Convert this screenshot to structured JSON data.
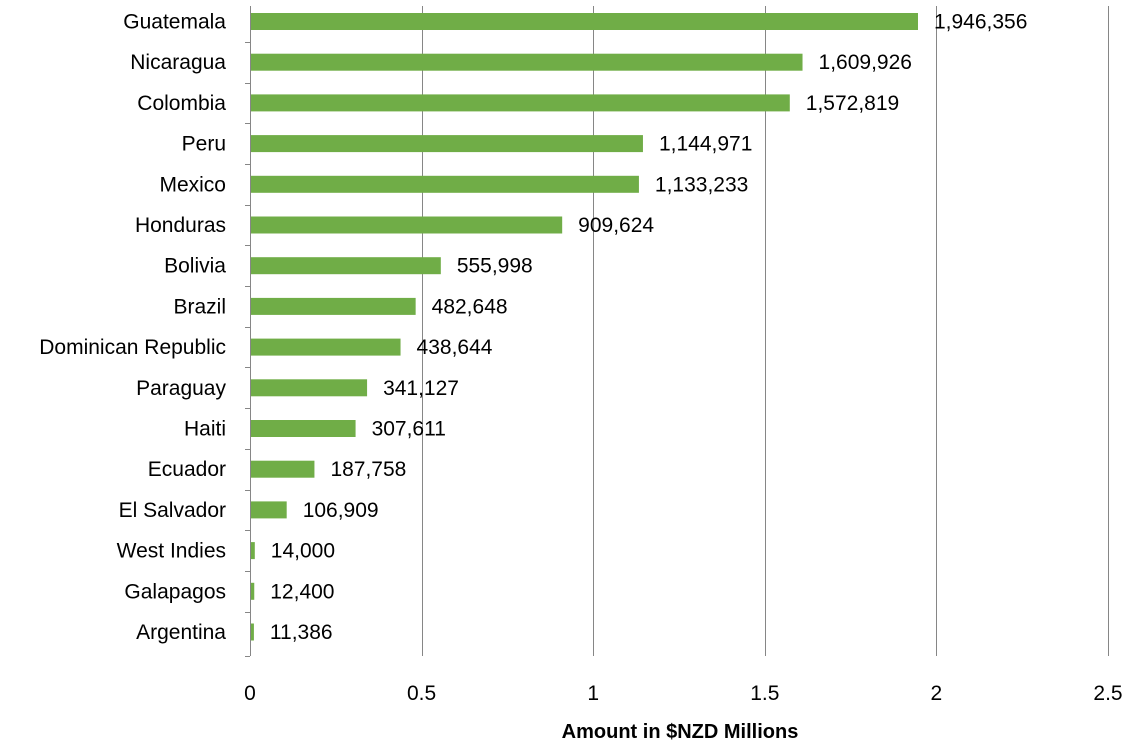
{
  "chart_data": {
    "type": "bar",
    "orientation": "horizontal",
    "categories": [
      "Guatemala",
      "Nicaragua",
      "Colombia",
      "Peru",
      "Mexico",
      "Honduras",
      "Bolivia",
      "Brazil",
      "Dominican Republic",
      "Paraguay",
      "Haiti",
      "Ecuador",
      "El Salvador",
      "West Indies",
      "Galapagos",
      "Argentina"
    ],
    "values": [
      1946356,
      1609926,
      1572819,
      1144971,
      1133233,
      909624,
      555998,
      482648,
      438644,
      341127,
      307611,
      187758,
      106909,
      14000,
      12400,
      11386
    ],
    "data_labels": [
      "1,946,356",
      "1,609,926",
      "1,572,819",
      "1,144,971",
      "1,133,233",
      "909,624",
      "555,998",
      "482,648",
      "438,644",
      "341,127",
      "307,611",
      "187,758",
      "106,909",
      "14,000",
      "12,400",
      "11,386"
    ],
    "title": "",
    "xlabel": "Amount in $NZD Millions",
    "ylabel": "",
    "xlim": [
      0,
      2.5
    ],
    "xticks": [
      0,
      0.5,
      1,
      1.5,
      2,
      2.5
    ],
    "xtick_labels": [
      "0",
      "0.5",
      "1",
      "1.5",
      "2",
      "2.5"
    ],
    "grid": "vertical",
    "legend": "none",
    "bar_color": "#70ad47",
    "gridline_color": "#868686"
  }
}
